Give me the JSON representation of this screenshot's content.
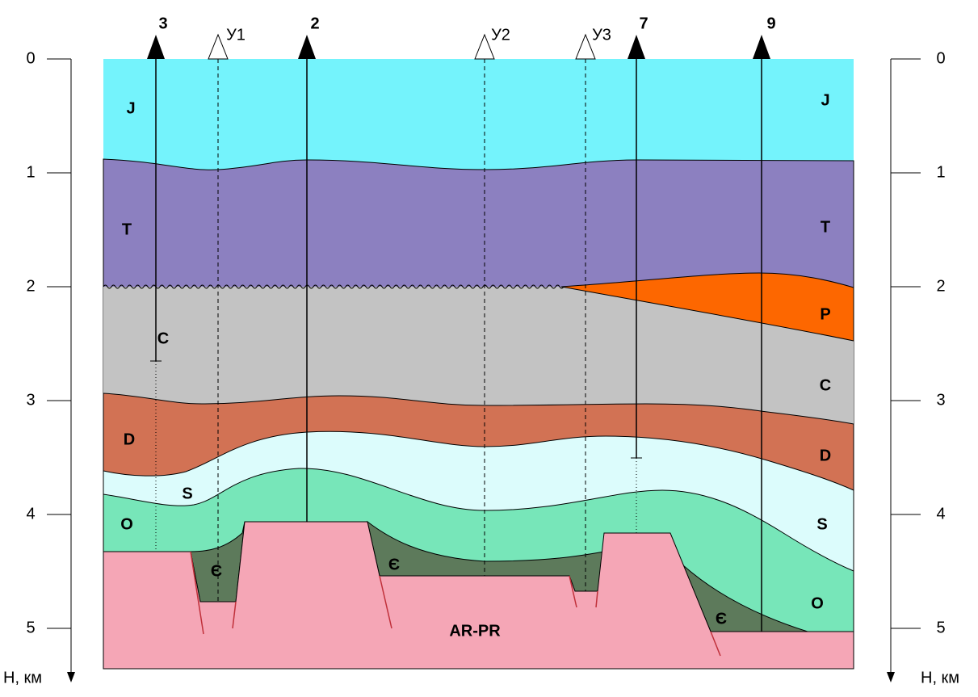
{
  "wells": [
    {
      "label": "3"
    },
    {
      "label": "У1"
    },
    {
      "label": "2"
    },
    {
      "label": "У2"
    },
    {
      "label": "У3"
    },
    {
      "label": "7"
    },
    {
      "label": "9"
    }
  ],
  "layer_labels": [
    "J",
    "T",
    "C",
    "D",
    "S",
    "O",
    "Є",
    "Є",
    "AR-PR",
    "Є",
    "J",
    "T",
    "P",
    "C",
    "D",
    "S",
    "O"
  ],
  "depth_axis": {
    "ticks": [
      0,
      1,
      2,
      3,
      4,
      5
    ],
    "title": "Н, км"
  }
}
